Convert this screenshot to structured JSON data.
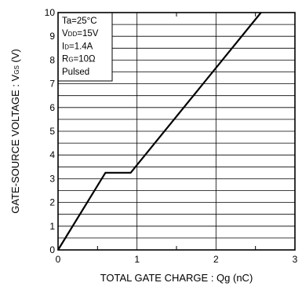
{
  "chart_data": {
    "type": "line",
    "title": "",
    "xlabel": "TOTAL GATE CHARGE : Qg (nC)",
    "ylabel": {
      "main": "GATE-SOURCE VOLTAGE : V",
      "sub": "GS",
      "unit": " (V)"
    },
    "xlim": [
      0,
      3
    ],
    "ylim": [
      0,
      10
    ],
    "x_major_ticks": [
      0,
      1,
      2,
      3
    ],
    "x_tick_labels": [
      "0",
      "1",
      "2",
      "3"
    ],
    "x_minor_step": 0.5,
    "y_major_ticks": [
      0,
      1,
      2,
      3,
      4,
      5,
      6,
      7,
      8,
      9,
      10
    ],
    "y_tick_labels": [
      "0",
      "1",
      "2",
      "3",
      "4",
      "5",
      "6",
      "7",
      "8",
      "9",
      "10"
    ],
    "y_minor_step": 0.5,
    "grid": true,
    "series": [
      {
        "x": [
          0,
          0.6,
          0.92,
          2.57
        ],
        "y": [
          0,
          3.25,
          3.25,
          10
        ]
      }
    ],
    "conditions": [
      {
        "main": "Ta=25°C",
        "sub": "",
        "rest": ""
      },
      {
        "main": "V",
        "sub": "DD",
        "rest": "=15V"
      },
      {
        "main": "I",
        "sub": "D",
        "rest": "=1.4A"
      },
      {
        "main": "R",
        "sub": "G",
        "rest": "=10Ω"
      },
      {
        "main": "Pulsed",
        "sub": "",
        "rest": ""
      }
    ],
    "line_color": "#000000"
  }
}
